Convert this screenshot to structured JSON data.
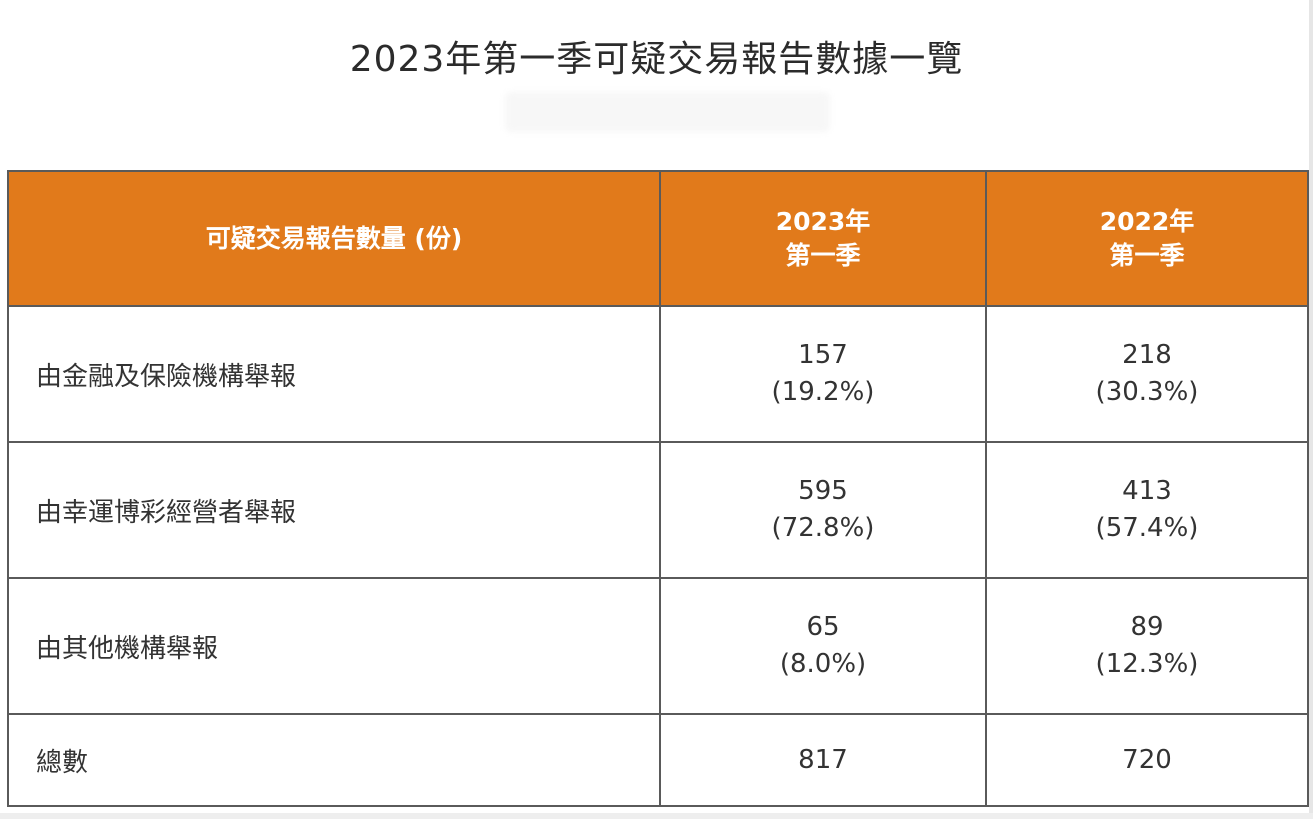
{
  "title": "2023年第一季可疑交易報告數據一覽",
  "table": {
    "header": {
      "label": "可疑交易報告數量 (份)",
      "col_2023": [
        "2023年",
        "第一季"
      ],
      "col_2022": [
        "2022年",
        "第一季"
      ]
    },
    "rows": [
      {
        "label": "由金融及保險機構舉報",
        "y2023": "157",
        "p2023": "(19.2%)",
        "y2022": "218",
        "p2022": "(30.3%)"
      },
      {
        "label": "由幸運博彩經營者舉報",
        "y2023": "595",
        "p2023": "(72.8%)",
        "y2022": "413",
        "p2022": "(57.4%)"
      },
      {
        "label": "由其他機構舉報",
        "y2023": "65",
        "p2023": "(8.0%)",
        "y2022": "89",
        "p2022": "(12.3%)"
      }
    ],
    "total": {
      "label": "總數",
      "y2023": "817",
      "y2022": "720"
    }
  },
  "colors": {
    "header_bg": "#e17a1b",
    "header_text": "#ffffff",
    "border": "#5a5a5a",
    "text": "#333333"
  }
}
